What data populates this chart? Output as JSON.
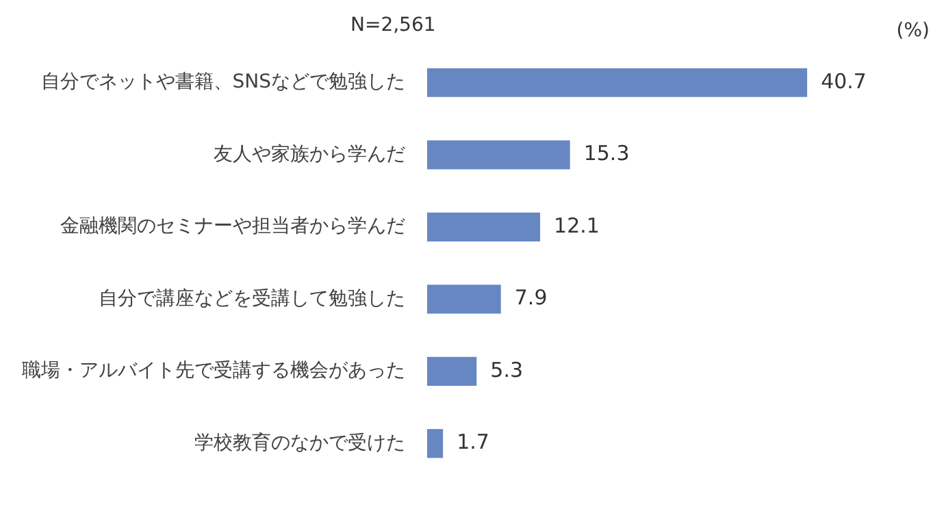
{
  "chart_data": {
    "type": "bar",
    "orientation": "horizontal",
    "categories": [
      "自分でネットや書籍、SNSなどで勉強した",
      "友人や家族から学んだ",
      "金融機関のセミナーや担当者から学んだ",
      "自分で講座などを受講して勉強した",
      "職場・アルバイト先で受講する機会があった",
      "学校教育のなかで受けた"
    ],
    "values": [
      40.7,
      15.3,
      12.1,
      7.9,
      5.3,
      1.7
    ],
    "color": "#6787c3",
    "data_labels": true,
    "grid": false,
    "legend": false,
    "tick_labels": "y",
    "annotations": [
      "N=2,561",
      "(%)"
    ]
  }
}
